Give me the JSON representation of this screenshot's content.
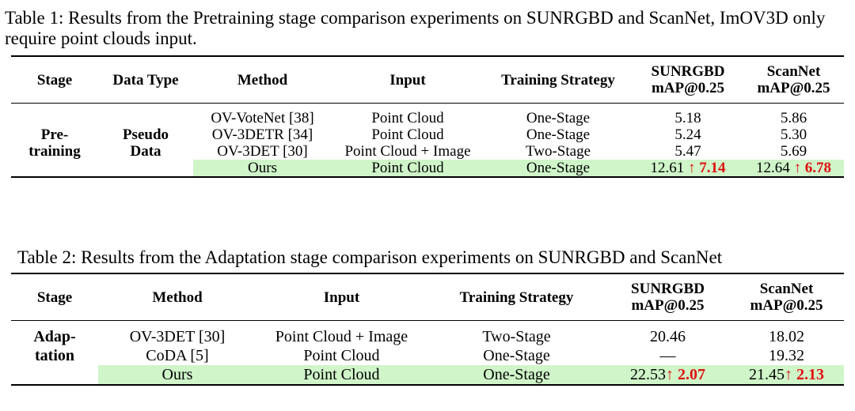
{
  "table1": {
    "caption": "Table 1: Results from the Pretraining stage comparison experiments on SUNRGBD and ScanNet, ImOV3D only require point clouds input.",
    "headers": {
      "stage": "Stage",
      "data_type": "Data Type",
      "method": "Method",
      "input": "Input",
      "strategy": "Training Strategy",
      "sun_line1": "SUNRGBD",
      "sun_line2": "mAP@0.25",
      "scan_line1": "ScanNet",
      "scan_line2": "mAP@0.25"
    },
    "stage_line1": "Pre-",
    "stage_line2": "training",
    "data_line1": "Pseudo",
    "data_line2": "Data",
    "rows": [
      {
        "method": "OV-VoteNet [38]",
        "input": "Point Cloud",
        "strategy": "One-Stage",
        "sun": "5.18",
        "scan": "5.86"
      },
      {
        "method": "OV-3DETR [34]",
        "input": "Point Cloud",
        "strategy": "One-Stage",
        "sun": "5.24",
        "scan": "5.30"
      },
      {
        "method": "OV-3DET [30]",
        "input": "Point Cloud + Image",
        "strategy": "Two-Stage",
        "sun": "5.47",
        "scan": "5.69"
      }
    ],
    "ours": {
      "method": "Ours",
      "input": "Point Cloud",
      "strategy": "One-Stage",
      "sun": "12.61",
      "sun_gain": "↑ 7.14",
      "scan": "12.64",
      "scan_gain": "↑ 6.78"
    }
  },
  "table2": {
    "caption": "Table 2: Results from the Adaptation stage comparison experiments on SUNRGBD and ScanNet",
    "headers": {
      "stage": "Stage",
      "method": "Method",
      "input": "Input",
      "strategy": "Training Strategy",
      "sun_line1": "SUNRGBD",
      "sun_line2": "mAP@0.25",
      "scan_line1": "ScanNet",
      "scan_line2": "mAP@0.25"
    },
    "stage_line1": "Adap-",
    "stage_line2": "tation",
    "rows": [
      {
        "method": "OV-3DET [30]",
        "input": "Point Cloud + Image",
        "strategy": "Two-Stage",
        "sun": "20.46",
        "scan": "18.02"
      },
      {
        "method": "CoDA [5]",
        "input": "Point Cloud",
        "strategy": "One-Stage",
        "sun": "—",
        "scan": "19.32"
      }
    ],
    "ours": {
      "method": "Ours",
      "input": "Point Cloud",
      "strategy": "One-Stage",
      "sun": "22.53",
      "sun_gain": "↑ 2.07",
      "scan": "21.45",
      "scan_gain": "↑ 2.13"
    }
  },
  "colors": {
    "highlight": "#cff5c9",
    "gain": "#e01010"
  }
}
